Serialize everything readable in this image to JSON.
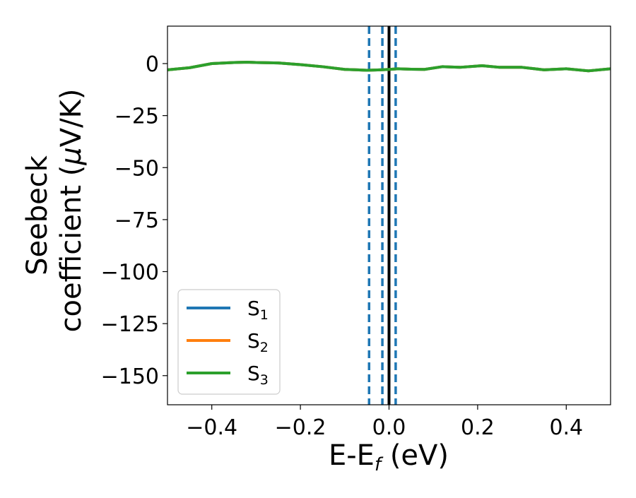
{
  "chart_data": {
    "type": "line",
    "title": "",
    "xlabel": "E-E_f (eV)",
    "xlabel_main": "E-E",
    "xlabel_sub": "f",
    "xlabel_tail": " (eV)",
    "ylabel": "Seebeck coefficient (μV/K)",
    "ylabel_line1": "Seebeck",
    "ylabel_line2_main": "coefficient  (",
    "ylabel_line2_mu": "μ",
    "ylabel_line2_tail": "V/K)",
    "xlim": [
      -0.5,
      0.5
    ],
    "ylim": [
      -164,
      18
    ],
    "xticks": [
      -0.4,
      -0.2,
      0.0,
      0.2,
      0.4
    ],
    "xtick_labels": [
      "−0.4",
      "−0.2",
      "0.0",
      "0.2",
      "0.4"
    ],
    "yticks": [
      0,
      -25,
      -50,
      -75,
      -100,
      -125,
      -150
    ],
    "ytick_labels": [
      "0",
      "−25",
      "−50",
      "−75",
      "−100",
      "−125",
      "−150"
    ],
    "grid": false,
    "legend_position": "lower-left",
    "series": [
      {
        "name": "S1",
        "label_main": "S",
        "label_sub": "1",
        "color": "#1f77b4",
        "x": [
          -0.5,
          -0.45,
          -0.4,
          -0.35,
          -0.32,
          -0.3,
          -0.25,
          -0.2,
          -0.15,
          -0.1,
          -0.05,
          -0.02,
          0.0,
          0.02,
          0.05,
          0.08,
          0.12,
          0.16,
          0.21,
          0.25,
          0.3,
          0.35,
          0.4,
          0.45,
          0.5
        ],
        "y": [
          -3,
          -2,
          0,
          0.5,
          0.7,
          0.5,
          0.3,
          -0.5,
          -1.5,
          -2.8,
          -3.2,
          -3.0,
          -2.8,
          -2.5,
          -2.7,
          -2.8,
          -1.5,
          -1.8,
          -1.0,
          -1.8,
          -1.8,
          -3.0,
          -2.5,
          -3.5,
          -2.5
        ]
      },
      {
        "name": "S2",
        "label_main": "S",
        "label_sub": "2",
        "color": "#ff7f0e",
        "x": [
          -0.5,
          -0.45,
          -0.4,
          -0.35,
          -0.32,
          -0.3,
          -0.25,
          -0.2,
          -0.15,
          -0.1,
          -0.05,
          -0.02,
          0.0,
          0.02,
          0.05,
          0.08,
          0.12,
          0.16,
          0.21,
          0.25,
          0.3,
          0.35,
          0.4,
          0.45,
          0.5
        ],
        "y": [
          -3,
          -2,
          0,
          0.5,
          0.7,
          0.5,
          0.3,
          -0.5,
          -1.5,
          -2.8,
          -3.2,
          -3.0,
          -2.8,
          -2.5,
          -2.7,
          -2.8,
          -1.5,
          -1.8,
          -1.0,
          -1.8,
          -1.8,
          -3.0,
          -2.5,
          -3.5,
          -2.5
        ]
      },
      {
        "name": "S3",
        "label_main": "S",
        "label_sub": "3",
        "color": "#2ca02c",
        "x": [
          -0.5,
          -0.45,
          -0.4,
          -0.35,
          -0.32,
          -0.3,
          -0.25,
          -0.2,
          -0.15,
          -0.1,
          -0.05,
          -0.02,
          0.0,
          0.02,
          0.05,
          0.08,
          0.12,
          0.16,
          0.21,
          0.25,
          0.3,
          0.35,
          0.4,
          0.45,
          0.5
        ],
        "y": [
          -3,
          -2,
          0,
          0.5,
          0.7,
          0.5,
          0.3,
          -0.5,
          -1.5,
          -2.8,
          -3.2,
          -3.0,
          -2.8,
          -2.5,
          -2.7,
          -2.8,
          -1.5,
          -1.8,
          -1.0,
          -1.8,
          -1.8,
          -3.0,
          -2.5,
          -3.5,
          -2.5
        ]
      }
    ],
    "vertical_lines": [
      {
        "x": -0.045,
        "style": "dashed",
        "color": "#1f77b4"
      },
      {
        "x": -0.015,
        "style": "dashed",
        "color": "#1f77b4"
      },
      {
        "x": 0.0,
        "style": "solid",
        "color": "#000000"
      },
      {
        "x": 0.015,
        "style": "dashed",
        "color": "#1f77b4"
      }
    ]
  }
}
